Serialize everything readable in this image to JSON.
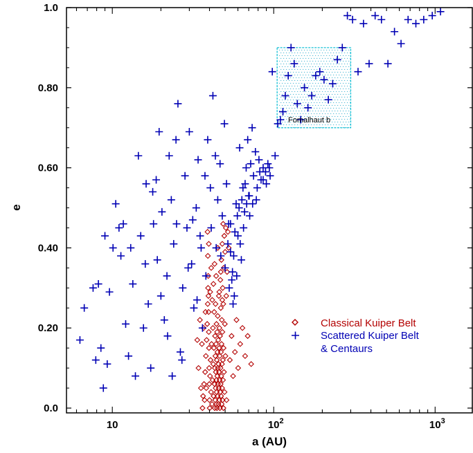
{
  "colors": {
    "classical": "#b30000",
    "scattered": "#0000b4",
    "box_edge": "#19c2d6",
    "box_dots": "#1aa6c8",
    "axis": "#000000"
  },
  "chart_data": {
    "type": "scatter",
    "title": "",
    "xlabel": "a (AU)",
    "ylabel": "e",
    "xscale": "log",
    "xlim": [
      5.2,
      1700
    ],
    "ylim": [
      -0.012,
      1.0
    ],
    "x_ticks": [
      {
        "value": 10,
        "label": "10",
        "exp": ""
      },
      {
        "value": 100,
        "label": "10",
        "exp": "2"
      },
      {
        "value": 1000,
        "label": "10",
        "exp": "3"
      }
    ],
    "y_ticks": [
      {
        "value": 0.0,
        "label": "0.0"
      },
      {
        "value": 0.2,
        "label": "0.20"
      },
      {
        "value": 0.4,
        "label": "0.40"
      },
      {
        "value": 0.6,
        "label": "0.60"
      },
      {
        "value": 0.8,
        "label": "0.80"
      },
      {
        "value": 1.0,
        "label": "1.0"
      }
    ],
    "grid": false,
    "legend_position": "right",
    "legend": [
      {
        "name": "Classical Kuiper Belt",
        "marker": "diamond",
        "color": "#b30000"
      },
      {
        "name": "Scattered Kuiper Belt",
        "name2": "& Centaurs",
        "marker": "plus",
        "color": "#0000b4"
      }
    ],
    "annotation_box": {
      "label": "Fomalhaut b",
      "a_range": [
        105,
        300
      ],
      "e_range": [
        0.7,
        0.9
      ]
    },
    "series": [
      {
        "name": "Classical Kuiper Belt",
        "marker": "diamond",
        "points": [
          [
            36.2,
            0.0
          ],
          [
            36.5,
            0.03
          ],
          [
            37.0,
            0.06
          ],
          [
            37.3,
            0.02
          ],
          [
            37.6,
            0.09
          ],
          [
            38.0,
            0.13
          ],
          [
            38.2,
            0.05
          ],
          [
            38.4,
            0.17
          ],
          [
            38.7,
            0.21
          ],
          [
            39.0,
            0.26
          ],
          [
            39.2,
            0.3
          ],
          [
            39.3,
            0.33
          ],
          [
            39.4,
            0.28
          ],
          [
            39.5,
            0.24
          ],
          [
            39.6,
            0.19
          ],
          [
            39.7,
            0.15
          ],
          [
            39.8,
            0.1
          ],
          [
            39.9,
            0.06
          ],
          [
            40.0,
            0.02
          ],
          [
            40.1,
            0.0
          ],
          [
            40.3,
            0.08
          ],
          [
            40.6,
            0.12
          ],
          [
            40.9,
            0.04
          ],
          [
            41.2,
            0.16
          ],
          [
            41.5,
            0.01
          ],
          [
            41.8,
            0.07
          ],
          [
            42.0,
            0.2
          ],
          [
            42.2,
            0.11
          ],
          [
            42.4,
            0.03
          ],
          [
            42.6,
            0.15
          ],
          [
            42.8,
            0.24
          ],
          [
            43.0,
            0.06
          ],
          [
            43.1,
            0.0
          ],
          [
            43.2,
            0.1
          ],
          [
            43.3,
            0.18
          ],
          [
            43.4,
            0.02
          ],
          [
            43.5,
            0.13
          ],
          [
            43.6,
            0.26
          ],
          [
            43.7,
            0.05
          ],
          [
            43.8,
            0.09
          ],
          [
            43.9,
            0.16
          ],
          [
            44.0,
            0.01
          ],
          [
            44.1,
            0.07
          ],
          [
            44.2,
            0.21
          ],
          [
            44.3,
            0.04
          ],
          [
            44.4,
            0.12
          ],
          [
            44.5,
            0.0
          ],
          [
            44.6,
            0.19
          ],
          [
            44.7,
            0.08
          ],
          [
            44.8,
            0.14
          ],
          [
            44.9,
            0.03
          ],
          [
            45.0,
            0.23
          ],
          [
            45.1,
            0.1
          ],
          [
            45.2,
            0.06
          ],
          [
            45.3,
            0.17
          ],
          [
            45.4,
            0.01
          ],
          [
            45.5,
            0.11
          ],
          [
            45.6,
            0.05
          ],
          [
            45.7,
            0.28
          ],
          [
            45.8,
            0.09
          ],
          [
            45.9,
            0.15
          ],
          [
            46.0,
            0.02
          ],
          [
            46.1,
            0.2
          ],
          [
            46.2,
            0.07
          ],
          [
            46.3,
            0.13
          ],
          [
            46.4,
            0.0
          ],
          [
            46.5,
            0.18
          ],
          [
            46.6,
            0.04
          ],
          [
            46.7,
            0.32
          ],
          [
            46.8,
            0.1
          ],
          [
            46.9,
            0.06
          ],
          [
            47.0,
            0.25
          ],
          [
            47.1,
            0.14
          ],
          [
            47.2,
            0.03
          ],
          [
            47.3,
            0.08
          ],
          [
            47.4,
            0.37
          ],
          [
            47.5,
            0.16
          ],
          [
            47.6,
            0.01
          ],
          [
            47.7,
            0.22
          ],
          [
            47.8,
            0.11
          ],
          [
            47.9,
            0.05
          ],
          [
            48.0,
            0.41
          ],
          [
            48.1,
            0.19
          ],
          [
            48.2,
            0.02
          ],
          [
            48.3,
            0.3
          ],
          [
            48.4,
            0.12
          ],
          [
            48.5,
            0.07
          ],
          [
            48.6,
            0.46
          ],
          [
            48.7,
            0.26
          ],
          [
            48.8,
            0.0
          ],
          [
            48.9,
            0.15
          ],
          [
            49.0,
            0.35
          ],
          [
            49.2,
            0.09
          ],
          [
            49.4,
            0.43
          ],
          [
            49.6,
            0.04
          ],
          [
            49.8,
            0.21
          ],
          [
            50.0,
            0.39
          ],
          [
            50.2,
            0.13
          ],
          [
            50.5,
            0.45
          ],
          [
            50.8,
            0.28
          ],
          [
            51.0,
            0.02
          ],
          [
            51.4,
            0.34
          ],
          [
            52.0,
            0.44
          ],
          [
            52.6,
            0.4
          ],
          [
            35.9,
            0.16
          ],
          [
            36.8,
            0.2
          ],
          [
            37.8,
            0.24
          ],
          [
            38.9,
            0.44
          ],
          [
            39.1,
            0.38
          ],
          [
            39.6,
            0.41
          ],
          [
            40.4,
            0.29
          ],
          [
            41.0,
            0.35
          ],
          [
            41.6,
            0.27
          ],
          [
            42.3,
            0.31
          ],
          [
            43.0,
            0.36
          ],
          [
            44.0,
            0.33
          ],
          [
            45.0,
            0.4
          ],
          [
            46.0,
            0.29
          ],
          [
            47.0,
            0.34
          ],
          [
            48.0,
            0.27
          ],
          [
            33.6,
            0.17
          ],
          [
            34.2,
            0.1
          ],
          [
            34.9,
            0.22
          ],
          [
            35.4,
            0.05
          ],
          [
            53.5,
            0.12
          ],
          [
            54.8,
            0.18
          ],
          [
            56.0,
            0.08
          ],
          [
            57.5,
            0.14
          ],
          [
            58.8,
            0.22
          ],
          [
            60.2,
            0.1
          ],
          [
            62.0,
            0.16
          ],
          [
            64.0,
            0.2
          ],
          [
            66.5,
            0.13
          ],
          [
            69.0,
            0.18
          ],
          [
            72.5,
            0.11
          ]
        ]
      },
      {
        "name": "Scattered Kuiper Belt & Centaurs",
        "marker": "plus",
        "points": [
          [
            6.3,
            0.17
          ],
          [
            6.7,
            0.25
          ],
          [
            7.6,
            0.3
          ],
          [
            7.9,
            0.12
          ],
          [
            8.2,
            0.31
          ],
          [
            8.5,
            0.15
          ],
          [
            8.8,
            0.05
          ],
          [
            9.0,
            0.43
          ],
          [
            9.3,
            0.11
          ],
          [
            9.6,
            0.29
          ],
          [
            10.1,
            0.4
          ],
          [
            10.5,
            0.51
          ],
          [
            11.0,
            0.45
          ],
          [
            11.3,
            0.38
          ],
          [
            11.7,
            0.46
          ],
          [
            12.1,
            0.21
          ],
          [
            12.6,
            0.13
          ],
          [
            13.0,
            0.4
          ],
          [
            13.4,
            0.31
          ],
          [
            13.9,
            0.08
          ],
          [
            14.5,
            0.63
          ],
          [
            15.0,
            0.43
          ],
          [
            15.6,
            0.2
          ],
          [
            16.0,
            0.36
          ],
          [
            16.7,
            0.26
          ],
          [
            17.3,
            0.1
          ],
          [
            18.0,
            0.46
          ],
          [
            18.7,
            0.57
          ],
          [
            19.5,
            0.69
          ],
          [
            20.3,
            0.49
          ],
          [
            21.0,
            0.22
          ],
          [
            21.8,
            0.33
          ],
          [
            22.5,
            0.63
          ],
          [
            23.2,
            0.52
          ],
          [
            24.0,
            0.41
          ],
          [
            24.8,
            0.67
          ],
          [
            25.5,
            0.76
          ],
          [
            26.4,
            0.14
          ],
          [
            27.3,
            0.3
          ],
          [
            28.2,
            0.58
          ],
          [
            29.0,
            0.45
          ],
          [
            30.0,
            0.69
          ],
          [
            31.0,
            0.36
          ],
          [
            32.0,
            0.25
          ],
          [
            33.1,
            0.5
          ],
          [
            34.0,
            0.62
          ],
          [
            35.0,
            0.43
          ],
          [
            36.2,
            0.2
          ],
          [
            37.5,
            0.58
          ],
          [
            39.0,
            0.67
          ],
          [
            40.5,
            0.55
          ],
          [
            42.0,
            0.78
          ],
          [
            43.5,
            0.63
          ],
          [
            45.0,
            0.52
          ],
          [
            46.5,
            0.61
          ],
          [
            48.0,
            0.48
          ],
          [
            49.5,
            0.71
          ],
          [
            51.0,
            0.56
          ],
          [
            52.5,
            0.46
          ],
          [
            54.0,
            0.39
          ],
          [
            55.5,
            0.34
          ],
          [
            57.0,
            0.28
          ],
          [
            58.5,
            0.51
          ],
          [
            60.0,
            0.43
          ],
          [
            61.5,
            0.65
          ],
          [
            63.0,
            0.37
          ],
          [
            64.5,
            0.55
          ],
          [
            66.0,
            0.49
          ],
          [
            67.5,
            0.6
          ],
          [
            69.0,
            0.67
          ],
          [
            70.5,
            0.53
          ],
          [
            72.0,
            0.61
          ],
          [
            73.5,
            0.7
          ],
          [
            75.0,
            0.58
          ],
          [
            77.0,
            0.64
          ],
          [
            79.0,
            0.55
          ],
          [
            81.0,
            0.62
          ],
          [
            83.5,
            0.57
          ],
          [
            86.0,
            0.6
          ],
          [
            89.0,
            0.59
          ],
          [
            92.0,
            0.61
          ],
          [
            95.0,
            0.58
          ],
          [
            98.0,
            0.84
          ],
          [
            102.0,
            0.63
          ],
          [
            106.0,
            0.71
          ],
          [
            110.0,
            0.72
          ],
          [
            114.0,
            0.74
          ],
          [
            118.0,
            0.78
          ],
          [
            123.0,
            0.83
          ],
          [
            128.0,
            0.9
          ],
          [
            134.0,
            0.86
          ],
          [
            140.0,
            0.76
          ],
          [
            147.0,
            0.72
          ],
          [
            155.0,
            0.8
          ],
          [
            163.0,
            0.75
          ],
          [
            172.0,
            0.78
          ],
          [
            182.0,
            0.83
          ],
          [
            193.0,
            0.84
          ],
          [
            205.0,
            0.82
          ],
          [
            218.0,
            0.77
          ],
          [
            232.0,
            0.81
          ],
          [
            248.0,
            0.87
          ],
          [
            266.0,
            0.9
          ],
          [
            286.0,
            0.98
          ],
          [
            308.0,
            0.97
          ],
          [
            333.0,
            0.84
          ],
          [
            360.0,
            0.96
          ],
          [
            390.0,
            0.86
          ],
          [
            425.0,
            0.98
          ],
          [
            465.0,
            0.97
          ],
          [
            510.0,
            0.86
          ],
          [
            560.0,
            0.94
          ],
          [
            615.0,
            0.91
          ],
          [
            680.0,
            0.97
          ],
          [
            760.0,
            0.96
          ],
          [
            850.0,
            0.97
          ],
          [
            960.0,
            0.98
          ],
          [
            1080.0,
            0.99
          ],
          [
            16.2,
            0.56
          ],
          [
            17.8,
            0.54
          ],
          [
            19.0,
            0.37
          ],
          [
            20.0,
            0.28
          ],
          [
            22.0,
            0.18
          ],
          [
            23.5,
            0.08
          ],
          [
            25.0,
            0.46
          ],
          [
            27.0,
            0.12
          ],
          [
            29.5,
            0.35
          ],
          [
            31.5,
            0.47
          ],
          [
            33.5,
            0.27
          ],
          [
            35.5,
            0.4
          ],
          [
            38.0,
            0.33
          ],
          [
            41.0,
            0.45
          ],
          [
            44.0,
            0.4
          ],
          [
            47.0,
            0.38
          ],
          [
            50.0,
            0.35
          ],
          [
            53.0,
            0.3
          ],
          [
            56.0,
            0.26
          ],
          [
            59.0,
            0.33
          ],
          [
            62.0,
            0.41
          ],
          [
            65.0,
            0.45
          ],
          [
            68.0,
            0.51
          ],
          [
            71.0,
            0.48
          ],
          [
            52.0,
            0.41
          ],
          [
            54.0,
            0.46
          ],
          [
            55.0,
            0.32
          ],
          [
            56.5,
            0.38
          ],
          [
            57.5,
            0.44
          ],
          [
            59.5,
            0.48
          ],
          [
            61.0,
            0.5
          ],
          [
            63.5,
            0.52
          ],
          [
            66.5,
            0.56
          ],
          [
            70.0,
            0.53
          ],
          [
            74.0,
            0.51
          ],
          [
            78.0,
            0.52
          ],
          [
            82.0,
            0.59
          ],
          [
            86.0,
            0.57
          ],
          [
            90.0,
            0.56
          ],
          [
            94.0,
            0.6
          ]
        ]
      }
    ]
  }
}
